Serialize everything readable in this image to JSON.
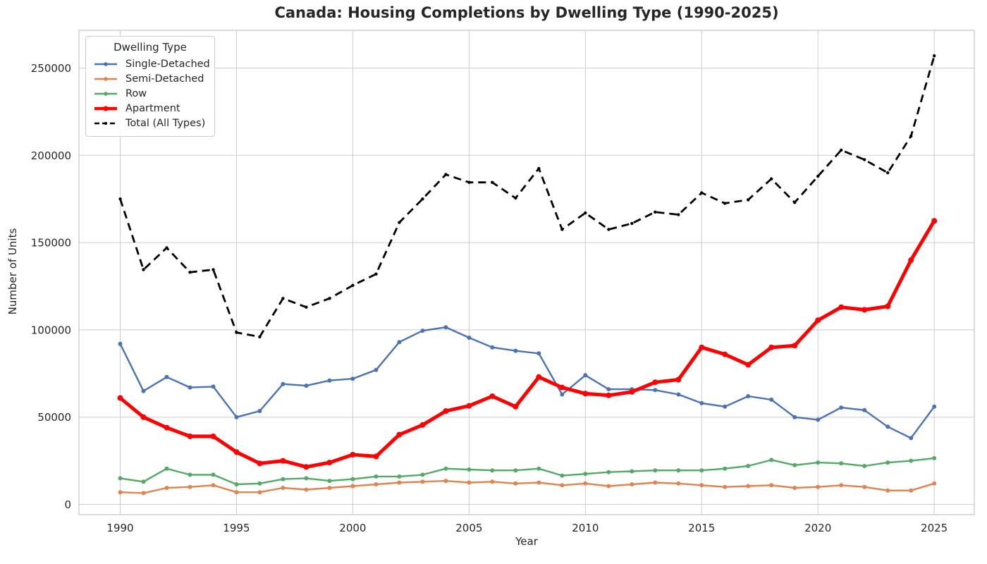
{
  "chart_data": {
    "type": "line",
    "title": "Canada: Housing Completions by Dwelling Type (1990-2025)",
    "xlabel": "Year",
    "ylabel": "Number of Units",
    "x": [
      1990,
      1991,
      1992,
      1993,
      1994,
      1995,
      1996,
      1997,
      1998,
      1999,
      2000,
      2001,
      2002,
      2003,
      2004,
      2005,
      2006,
      2007,
      2008,
      2009,
      2010,
      2011,
      2012,
      2013,
      2014,
      2015,
      2016,
      2017,
      2018,
      2019,
      2020,
      2021,
      2022,
      2023,
      2024,
      2025
    ],
    "x_ticks": [
      1990,
      1995,
      2000,
      2005,
      2010,
      2015,
      2020,
      2025
    ],
    "y_ticks": [
      0,
      50000,
      100000,
      150000,
      200000,
      250000
    ],
    "xlim": [
      1988.25,
      2026.75
    ],
    "ylim": [
      -7000,
      272000
    ],
    "grid": true,
    "legend": {
      "title": "Dwelling Type",
      "position": "upper left"
    },
    "series": [
      {
        "name": "Single-Detached",
        "color": "#4C72B0",
        "style": "solid",
        "width": 2.4,
        "values": [
          92000,
          65000,
          73000,
          67000,
          67500,
          50000,
          53500,
          69000,
          68000,
          71000,
          72000,
          77000,
          93000,
          99500,
          101500,
          95500,
          90000,
          88000,
          86500,
          63000,
          74000,
          66000,
          66000,
          65500,
          63000,
          58000,
          56000,
          62000,
          60000,
          50000,
          48500,
          55500,
          54000,
          44500,
          38000,
          56000
        ]
      },
      {
        "name": "Semi-Detached",
        "color": "#DD8452",
        "style": "solid",
        "width": 2.4,
        "values": [
          7000,
          6500,
          9500,
          10000,
          11000,
          7000,
          7000,
          9500,
          8500,
          9500,
          10500,
          11500,
          12500,
          13000,
          13500,
          12500,
          13000,
          12000,
          12500,
          11000,
          12000,
          10500,
          11500,
          12500,
          12000,
          11000,
          10000,
          10500,
          11000,
          9500,
          10000,
          11000,
          10000,
          8000,
          8000,
          12000
        ]
      },
      {
        "name": "Row",
        "color": "#55A868",
        "style": "solid",
        "width": 2.4,
        "values": [
          15000,
          13000,
          20500,
          17000,
          17000,
          11500,
          12000,
          14500,
          15000,
          13500,
          14500,
          16000,
          16000,
          17000,
          20500,
          20000,
          19500,
          19500,
          20500,
          16500,
          17500,
          18500,
          19000,
          19500,
          19500,
          19500,
          20500,
          22000,
          25500,
          22500,
          24000,
          23500,
          22000,
          24000,
          25000,
          26500
        ]
      },
      {
        "name": "Apartment",
        "color": "#FF0000",
        "style": "solid",
        "width": 5,
        "values": [
          61000,
          50000,
          44000,
          39000,
          39000,
          30000,
          23500,
          25000,
          21500,
          24000,
          28500,
          27500,
          40000,
          45500,
          53500,
          56500,
          62000,
          56000,
          73000,
          67000,
          63500,
          62500,
          64500,
          70000,
          71500,
          90000,
          86000,
          80000,
          90000,
          91000,
          105500,
          113000,
          111500,
          113500,
          140000,
          162500
        ]
      },
      {
        "name": "Total (All Types)",
        "color": "#000000",
        "style": "dashed",
        "width": 2.8,
        "values": [
          175000,
          134500,
          147000,
          133000,
          134500,
          98500,
          96000,
          118000,
          113000,
          118000,
          125500,
          132000,
          161500,
          175000,
          189000,
          184500,
          184500,
          175500,
          192500,
          157500,
          167000,
          157500,
          161000,
          167500,
          166000,
          178500,
          172500,
          174500,
          186500,
          173000,
          188000,
          203000,
          197500,
          190000,
          211000,
          257000
        ]
      }
    ]
  }
}
